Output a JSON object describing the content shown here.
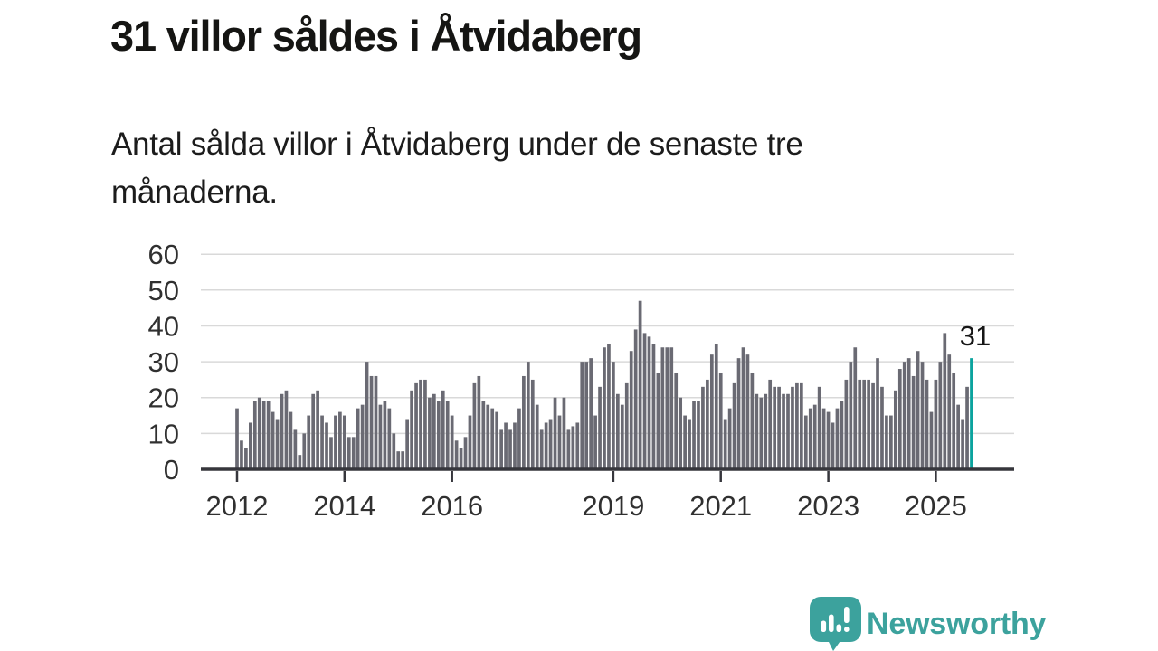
{
  "title": "31 villor såldes i Åtvidaberg",
  "subtitle": "Antal sålda villor i Åtvidaberg under de senaste tre månaderna.",
  "branding": {
    "logo_text": "Newsworthy"
  },
  "colors": {
    "bar": "#6a6a73",
    "highlight": "#0ba39e",
    "grid": "#d9d9d9",
    "axis": "#36363c",
    "brand_teal": "#3ca29d"
  },
  "chart_data": {
    "type": "bar",
    "title": "31 villor såldes i Åtvidaberg",
    "subtitle": "Antal sålda villor i Åtvidaberg under de senaste tre månaderna.",
    "unit": "villor",
    "frequency": "monthly_rolling_3_months",
    "x_start": "2012-01",
    "x_end": "2025-09",
    "xlabel": "",
    "ylabel": "",
    "ylim": [
      0,
      60
    ],
    "grid": true,
    "y_ticks": [
      0,
      10,
      20,
      30,
      40,
      50,
      60
    ],
    "x_tick_years": [
      2012,
      2014,
      2016,
      2019,
      2021,
      2023,
      2025
    ],
    "annotation": {
      "label": "31",
      "index": 164
    },
    "values": [
      17,
      8,
      6,
      13,
      19,
      20,
      19,
      19,
      16,
      14,
      21,
      22,
      16,
      11,
      4,
      10,
      15,
      21,
      22,
      15,
      13,
      9,
      15,
      16,
      15,
      9,
      9,
      17,
      18,
      30,
      26,
      26,
      18,
      19,
      17,
      10,
      5,
      5,
      14,
      22,
      24,
      25,
      25,
      20,
      21,
      19,
      22,
      19,
      15,
      8,
      6,
      9,
      15,
      24,
      26,
      19,
      18,
      17,
      16,
      11,
      13,
      11,
      13,
      17,
      26,
      30,
      25,
      18,
      11,
      13,
      14,
      20,
      15,
      20,
      11,
      12,
      13,
      30,
      30,
      31,
      15,
      23,
      34,
      35,
      30,
      21,
      18,
      24,
      33,
      39,
      47,
      38,
      37,
      35,
      27,
      34,
      34,
      34,
      27,
      20,
      15,
      14,
      19,
      19,
      23,
      25,
      32,
      35,
      27,
      14,
      17,
      24,
      31,
      34,
      32,
      27,
      21,
      20,
      21,
      25,
      23,
      23,
      21,
      21,
      23,
      24,
      24,
      15,
      17,
      18,
      23,
      17,
      16,
      13,
      17,
      19,
      25,
      30,
      34,
      25,
      25,
      25,
      24,
      31,
      23,
      15,
      15,
      22,
      28,
      30,
      31,
      26,
      33,
      30,
      25,
      16,
      25,
      30,
      38,
      32,
      27,
      18,
      14,
      23,
      31
    ]
  }
}
